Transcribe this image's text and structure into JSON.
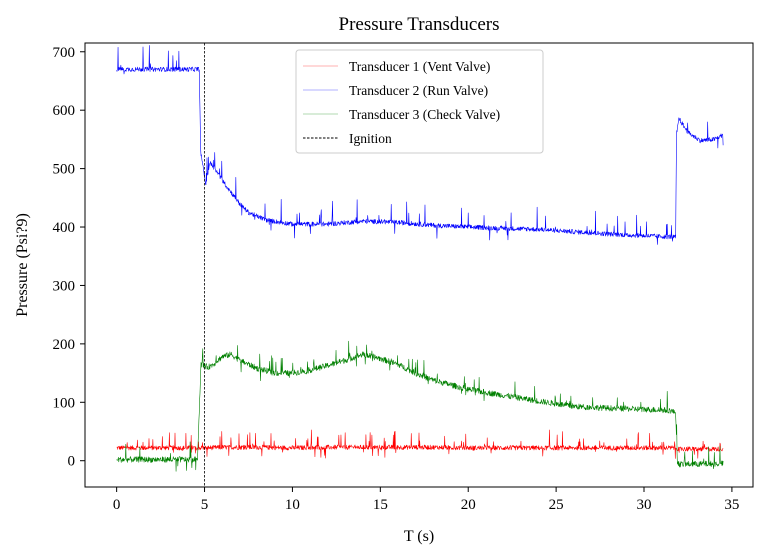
{
  "chart_data": {
    "type": "line",
    "title": "Pressure Transducers",
    "xlabel": "T (s)",
    "ylabel": "Pressure (Psi?9)",
    "xlim": [
      -1.8,
      36.2
    ],
    "ylim": [
      -45,
      715
    ],
    "xticks": [
      0,
      5,
      10,
      15,
      20,
      25,
      30,
      35
    ],
    "yticks": [
      0,
      100,
      200,
      300,
      400,
      500,
      600,
      700
    ],
    "grid": false,
    "legend_position": "top-center",
    "series": [
      {
        "name": "Transducer 1 (Vent Valve)",
        "color": "#ff0000",
        "noise": 4,
        "spike_rate": 0.07,
        "spike_size": 28,
        "x": [
          0,
          4.5,
          5,
          6,
          8,
          10,
          12,
          14,
          16,
          18,
          20,
          22,
          24,
          26,
          28,
          30,
          31.8,
          32,
          34.5
        ],
        "values": [
          22,
          22,
          22,
          23,
          23,
          22,
          23,
          23,
          23,
          23,
          22,
          22,
          22,
          22,
          22,
          22,
          22,
          20,
          20
        ]
      },
      {
        "name": "Transducer 2 (Run Valve)",
        "color": "#0000ff",
        "noise": 4,
        "spike_rate": 0.05,
        "spike_size": 40,
        "x": [
          0,
          4.6,
          4.7,
          4.78,
          5.0,
          5.05,
          5.3,
          5.6,
          6.0,
          6.5,
          7.0,
          7.5,
          8.5,
          10,
          12,
          14,
          16,
          18,
          20,
          22,
          24,
          26,
          28,
          30,
          31.8,
          31.85,
          32.0,
          32.5,
          33.2,
          34.0,
          34.5
        ],
        "values": [
          670,
          670,
          670,
          530,
          488,
          470,
          510,
          500,
          480,
          460,
          440,
          425,
          412,
          405,
          405,
          410,
          408,
          403,
          400,
          398,
          396,
          392,
          388,
          385,
          383,
          560,
          585,
          562,
          548,
          550,
          558
        ]
      },
      {
        "name": "Transducer 3 (Check Valve)",
        "color": "#008000",
        "noise": 5,
        "spike_rate": 0.06,
        "spike_size": 30,
        "x": [
          0,
          4.5,
          4.6,
          4.8,
          5.2,
          5.5,
          6.0,
          6.5,
          7.0,
          8.0,
          9.0,
          10,
          11,
          12,
          13,
          14,
          15,
          16,
          17,
          18,
          19,
          20,
          22,
          24,
          26,
          28,
          30,
          31.5,
          31.8,
          31.9,
          32,
          34.5
        ],
        "values": [
          2,
          2,
          6,
          165,
          160,
          165,
          178,
          182,
          172,
          158,
          150,
          150,
          155,
          163,
          172,
          182,
          175,
          165,
          150,
          138,
          130,
          122,
          112,
          102,
          93,
          90,
          88,
          86,
          82,
          -2,
          -6,
          -5
        ]
      }
    ],
    "annotations": [
      {
        "type": "vline",
        "x": 5.0,
        "label": "Ignition",
        "color": "#000000",
        "style": "dashed"
      }
    ]
  }
}
